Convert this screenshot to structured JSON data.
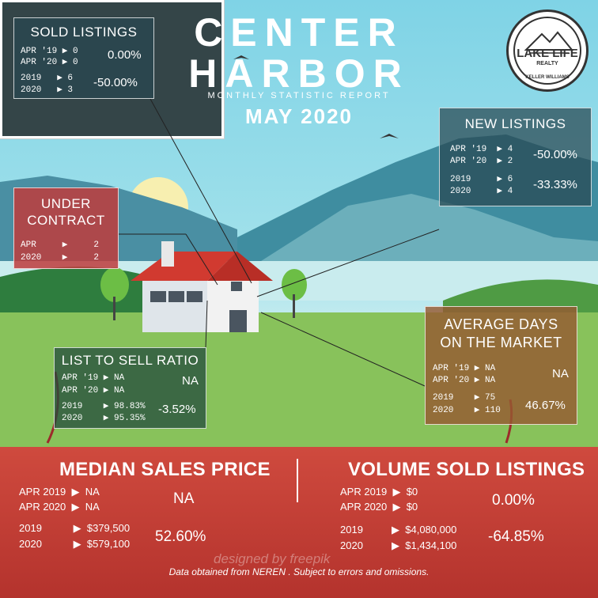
{
  "header": {
    "title_line1": "CENTER",
    "title_line2": "HARBOR",
    "subtitle": "MONTHLY STATISTIC REPORT",
    "month": "MAY 2020"
  },
  "logo": {
    "line1": "LAKE LIFE",
    "line2": "REALTY",
    "line3": "KELLER WILLIAMS"
  },
  "sold_listings": {
    "title": "SOLD LISTINGS",
    "rows": [
      "APR '19 ▶ 0",
      "APR '20 ▶ 0",
      "2019   ▶ 6",
      "2020   ▶ 3"
    ],
    "pct_apr": "0.00%",
    "pct_year": "-50.00%"
  },
  "under_contract": {
    "title_line1": "UNDER",
    "title_line2": "CONTRACT",
    "rows": [
      "APR     ▶     2",
      "2020    ▶     2"
    ]
  },
  "new_listings": {
    "title": "NEW LISTINGS",
    "rows": [
      "APR '19  ▶ 4",
      "APR '20  ▶ 2",
      "2019     ▶ 6",
      "2020     ▶ 4"
    ],
    "pct_apr": "-50.00%",
    "pct_year": "-33.33%"
  },
  "avg_days": {
    "title_line1": "AVERAGE DAYS",
    "title_line2": "ON THE MARKET",
    "rows": [
      "APR '19 ▶ NA",
      "APR '20 ▶ NA",
      "2019    ▶ 75",
      "2020    ▶ 110"
    ],
    "pct_apr": "NA",
    "pct_year": "46.67%"
  },
  "list_to_sell": {
    "title": "LIST TO SELL  RATIO",
    "rows": [
      "APR '19 ▶ NA",
      "APR '20 ▶ NA",
      "2019    ▶ 98.83%",
      "2020    ▶ 95.35%"
    ],
    "pct_apr": "NA",
    "pct_year": "-3.52%"
  },
  "median_price": {
    "title": "MEDIAN SALES PRICE",
    "rows": [
      "APR 2019  ▶  NA",
      "APR 2020  ▶  NA",
      "2019           ▶  $379,500",
      "2020           ▶  $579,100"
    ],
    "pct_apr": "NA",
    "pct_year": "52.60%"
  },
  "volume_sold": {
    "title": "VOLUME SOLD LISTINGS",
    "rows": [
      "APR 2019  ▶  $0",
      "APR 2020  ▶  $0",
      "2019          ▶  $4,080,000",
      "2020          ▶  $1,434,100"
    ],
    "pct_apr": "0.00%",
    "pct_year": "-64.85%"
  },
  "watermark": "designed by  freepik",
  "footer": "Data obtained from NEREN . Subject to errors and omissions.",
  "colors": {
    "title_bg": "#344548",
    "band_red": "#c0392b"
  }
}
